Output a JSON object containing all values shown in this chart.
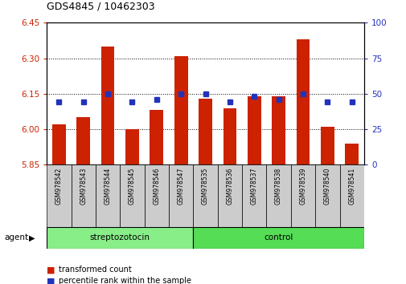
{
  "title": "GDS4845 / 10462303",
  "samples": [
    "GSM978542",
    "GSM978543",
    "GSM978544",
    "GSM978545",
    "GSM978546",
    "GSM978547",
    "GSM978535",
    "GSM978536",
    "GSM978537",
    "GSM978538",
    "GSM978539",
    "GSM978540",
    "GSM978541"
  ],
  "transformed_count": [
    6.02,
    6.05,
    6.35,
    6.0,
    6.08,
    6.31,
    6.13,
    6.09,
    6.14,
    6.14,
    6.38,
    6.01,
    5.94
  ],
  "percentile_rank": [
    44,
    44,
    50,
    44,
    46,
    50,
    50,
    44,
    48,
    46,
    50,
    44,
    44
  ],
  "groups": [
    "streptozotocin",
    "streptozotocin",
    "streptozotocin",
    "streptozotocin",
    "streptozotocin",
    "streptozotocin",
    "control",
    "control",
    "control",
    "control",
    "control",
    "control",
    "control"
  ],
  "ylim_left": [
    5.85,
    6.45
  ],
  "ylim_right": [
    0,
    100
  ],
  "yticks_left": [
    5.85,
    6.0,
    6.15,
    6.3,
    6.45
  ],
  "yticks_right": [
    0,
    25,
    50,
    75,
    100
  ],
  "bar_color": "#cc2200",
  "dot_color": "#2233bb",
  "strep_color": "#88ee88",
  "ctrl_color": "#55dd55",
  "streptozotocin_label": "streptozotocin",
  "control_label": "control",
  "agent_label": "agent",
  "legend_bar": "transformed count",
  "legend_dot": "percentile rank within the sample",
  "tick_color_left": "#cc2200",
  "tick_color_right": "#2233bb",
  "gridline_color": "#000000",
  "box_color": "#cccccc",
  "n_strep": 6,
  "n_ctrl": 7
}
